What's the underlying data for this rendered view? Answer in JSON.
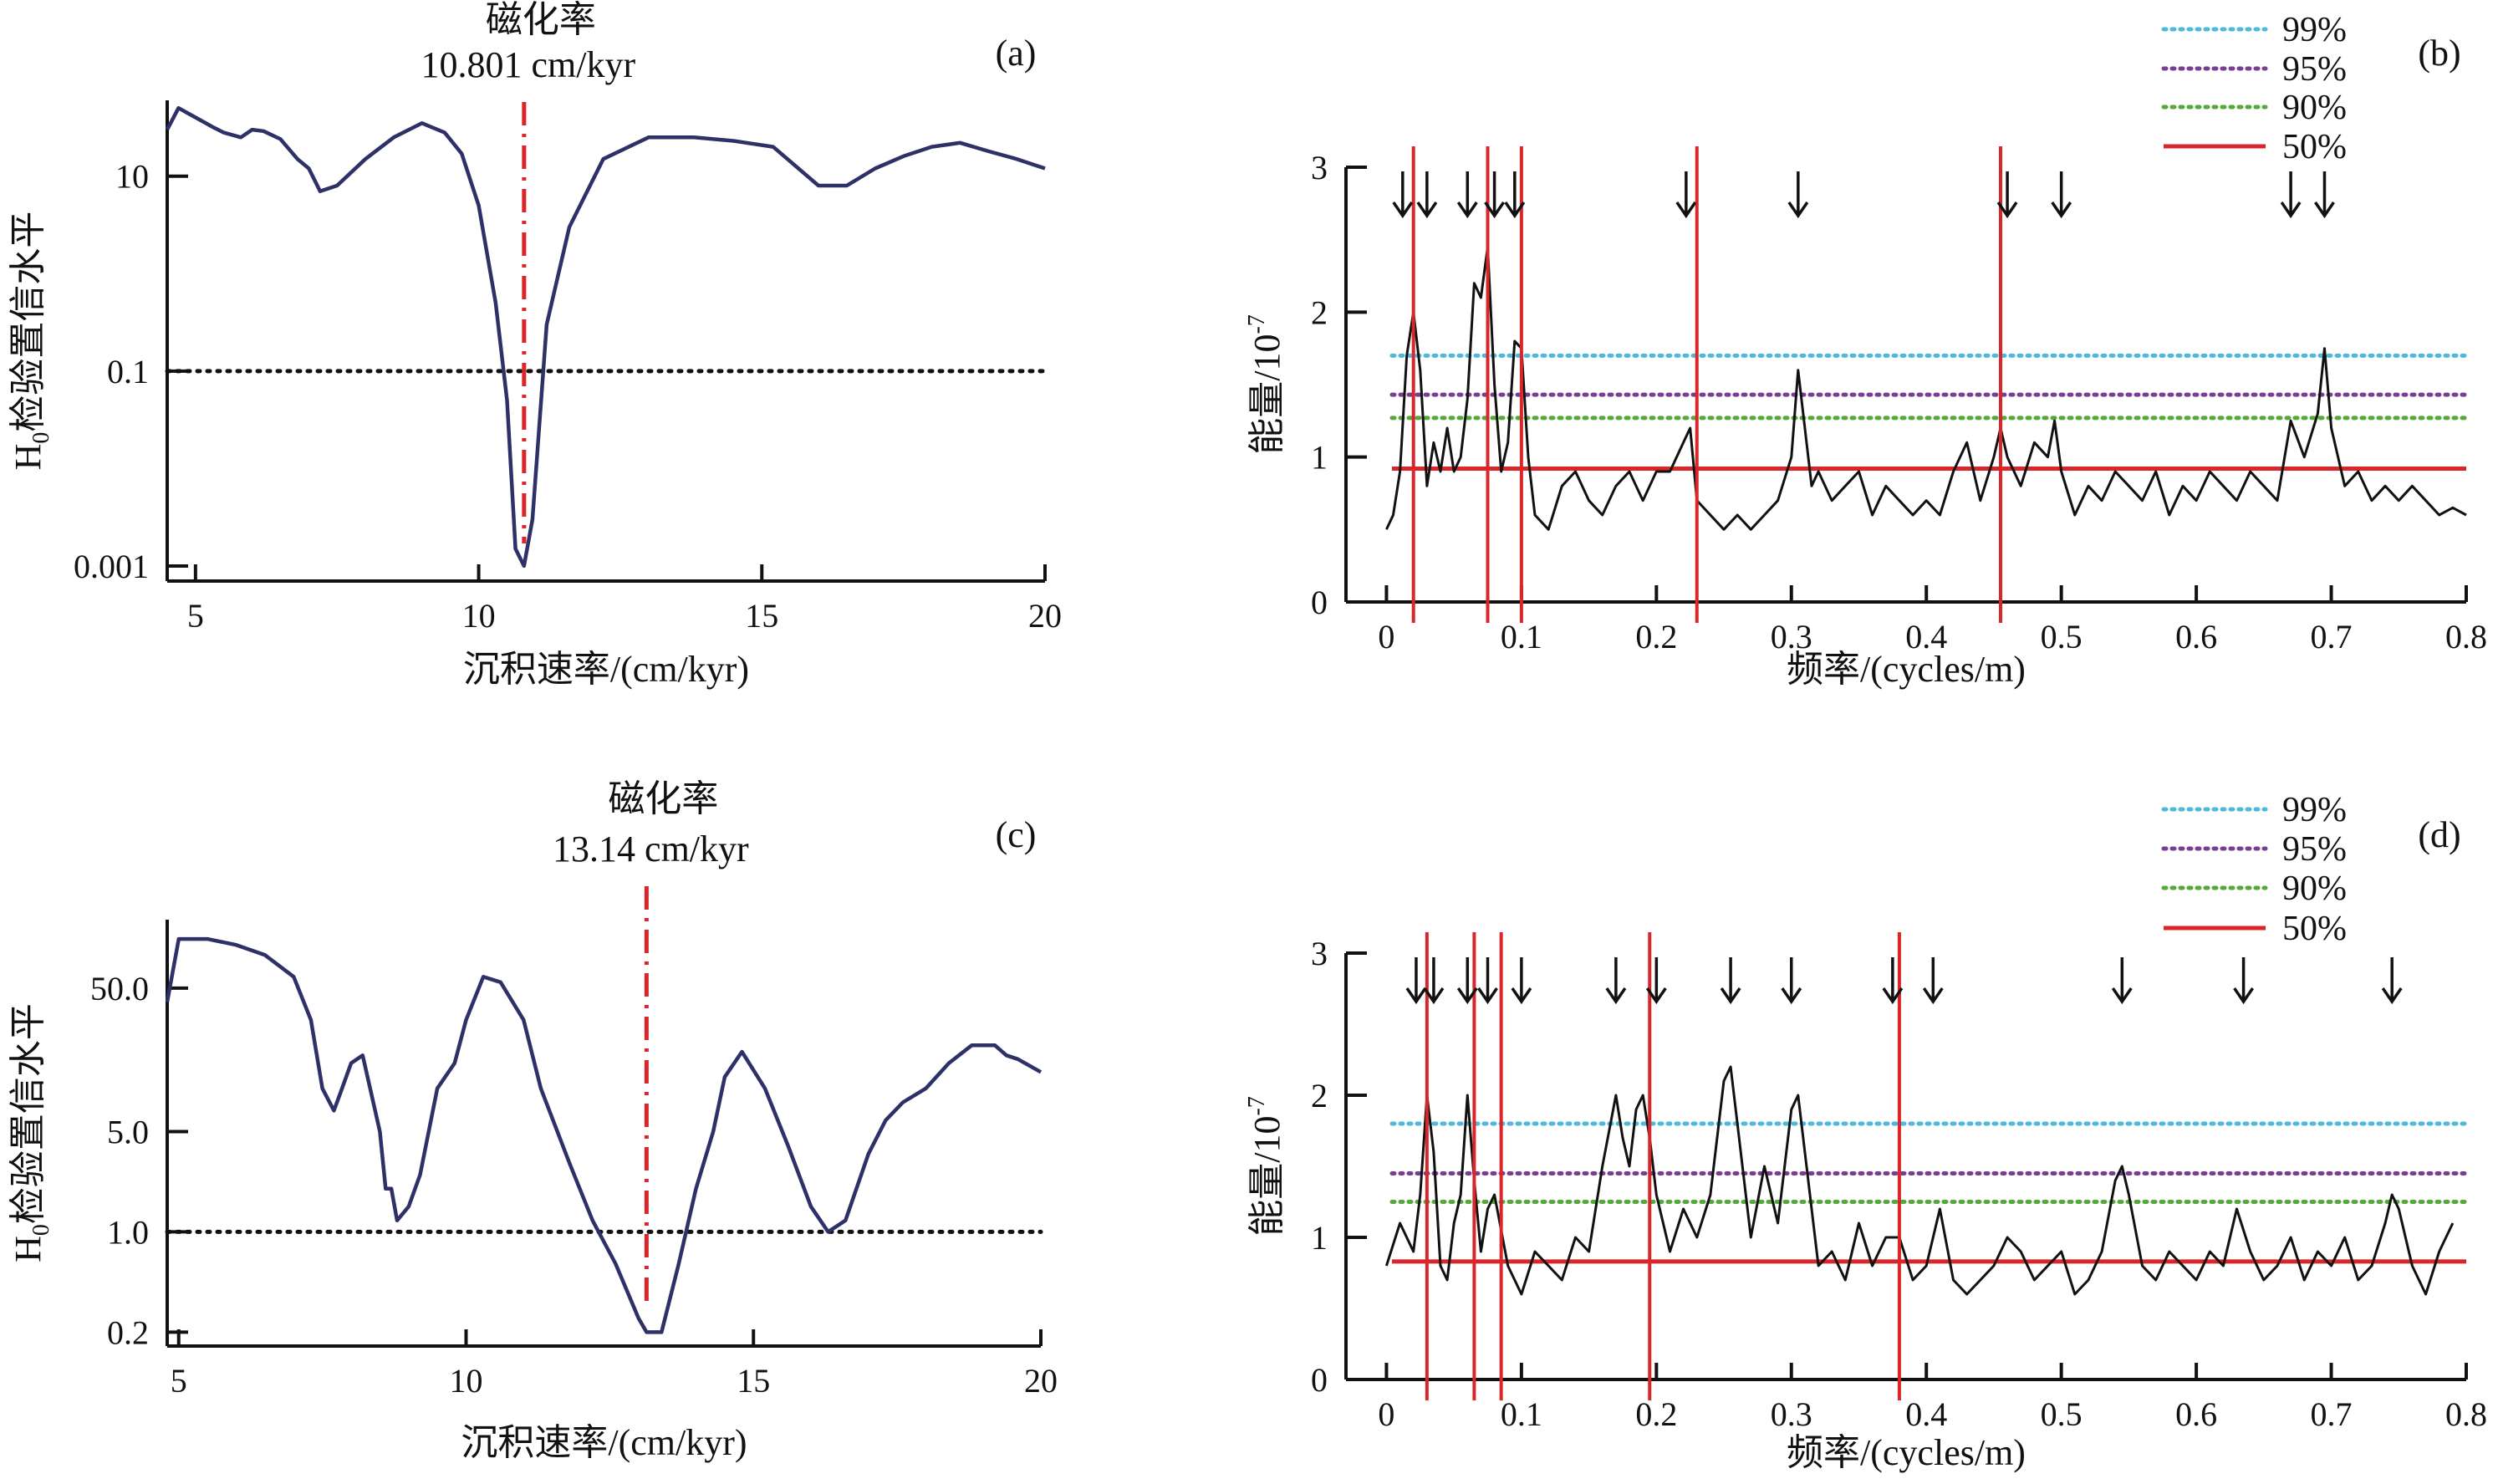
{
  "chart_data": [
    {
      "id": "a",
      "type": "line",
      "panel_label": "(a)",
      "title": "磁化率",
      "subtitle": "10.801 cm/kyr",
      "xlabel": "沉积速率/(cm/kyr)",
      "ylabel": "H0检验置信水平",
      "ylabel_main": "H",
      "ylabel_sub": "0",
      "ylabel_rest": "检验置信水平",
      "yscale": "log",
      "xlim": [
        4.5,
        20
      ],
      "ylim": [
        0.0007,
        60
      ],
      "xticks": [
        5,
        10,
        15,
        20
      ],
      "xtick_labels": [
        "5",
        "10",
        "15",
        "20"
      ],
      "yticks": [
        0.001,
        0.1,
        10
      ],
      "ytick_labels": [
        "0.001",
        "0.1",
        "10"
      ],
      "ref_line": 0.1,
      "marker_x": 10.801,
      "line_color": "#2e3168",
      "marker_color": "#d9262b",
      "series": [
        {
          "x": [
            4.5,
            4.7,
            5.0,
            5.3,
            5.5,
            5.8,
            6.0,
            6.2,
            6.5,
            6.8,
            7.0,
            7.2,
            7.5,
            8.0,
            8.5,
            9.0,
            9.4,
            9.7,
            10.0,
            10.3,
            10.5,
            10.65,
            10.8,
            10.95,
            11.2,
            11.6,
            12.2,
            13.0,
            13.8,
            14.5,
            15.2,
            16.0,
            16.5,
            17.0,
            17.5,
            18.0,
            18.5,
            19.0,
            19.5,
            20.0
          ],
          "y": [
            30,
            50,
            40,
            32,
            28,
            25,
            30,
            29,
            24,
            15,
            12,
            7,
            8,
            15,
            25,
            35,
            28,
            17,
            5,
            0.5,
            0.05,
            0.0015,
            0.001,
            0.003,
            0.3,
            3,
            15,
            25,
            25,
            23,
            20,
            8,
            8,
            12,
            16,
            20,
            22,
            18,
            15,
            12
          ]
        }
      ]
    },
    {
      "id": "b",
      "type": "line",
      "panel_label": "(b)",
      "xlabel": "频率/(cycles/m)",
      "ylabel": "能量/10-7",
      "ylabel_main": "能量/10",
      "ylabel_sup": "-7",
      "xlim": [
        -0.03,
        0.8
      ],
      "ylim": [
        0,
        3
      ],
      "xticks": [
        0,
        0.1,
        0.2,
        0.3,
        0.4,
        0.5,
        0.6,
        0.7,
        0.8
      ],
      "xtick_labels": [
        "0",
        "0.1",
        "0.2",
        "0.3",
        "0.4",
        "0.5",
        "0.6",
        "0.7",
        "0.8"
      ],
      "yticks": [
        0,
        1,
        2,
        3
      ],
      "ytick_labels": [
        "0",
        "1",
        "2",
        "3"
      ],
      "legend": [
        {
          "label": "99%",
          "color": "#4fb9da",
          "style": "dotted"
        },
        {
          "label": "95%",
          "color": "#7a3d94",
          "style": "dotted"
        },
        {
          "label": "90%",
          "color": "#55a83a",
          "style": "dotted"
        },
        {
          "label": "50%",
          "color": "#d9262b",
          "style": "solid"
        }
      ],
      "confidence_levels": [
        1.7,
        1.43,
        1.27,
        0.92
      ],
      "vertical_lines_x": [
        0.02,
        0.075,
        0.1,
        0.23,
        0.455
      ],
      "arrows_x": [
        0.012,
        0.03,
        0.06,
        0.08,
        0.095,
        0.222,
        0.305,
        0.46,
        0.5,
        0.67,
        0.695
      ],
      "series": [
        {
          "x": [
            0,
            0.005,
            0.01,
            0.015,
            0.02,
            0.025,
            0.03,
            0.035,
            0.04,
            0.045,
            0.05,
            0.055,
            0.06,
            0.065,
            0.07,
            0.075,
            0.08,
            0.085,
            0.09,
            0.095,
            0.1,
            0.105,
            0.11,
            0.12,
            0.13,
            0.14,
            0.15,
            0.16,
            0.17,
            0.18,
            0.19,
            0.2,
            0.21,
            0.22,
            0.225,
            0.23,
            0.24,
            0.25,
            0.26,
            0.27,
            0.28,
            0.29,
            0.3,
            0.305,
            0.31,
            0.315,
            0.32,
            0.33,
            0.34,
            0.35,
            0.36,
            0.37,
            0.38,
            0.39,
            0.4,
            0.41,
            0.42,
            0.43,
            0.44,
            0.45,
            0.455,
            0.46,
            0.47,
            0.48,
            0.49,
            0.495,
            0.5,
            0.51,
            0.52,
            0.53,
            0.54,
            0.55,
            0.56,
            0.57,
            0.58,
            0.59,
            0.6,
            0.61,
            0.62,
            0.63,
            0.64,
            0.65,
            0.66,
            0.67,
            0.68,
            0.69,
            0.695,
            0.7,
            0.71,
            0.72,
            0.73,
            0.74,
            0.75,
            0.76,
            0.77,
            0.78,
            0.79,
            0.8
          ],
          "y": [
            0.5,
            0.6,
            0.9,
            1.7,
            2.0,
            1.6,
            0.8,
            1.1,
            0.9,
            1.2,
            0.9,
            1.0,
            1.4,
            2.2,
            2.1,
            2.45,
            1.5,
            0.9,
            1.1,
            1.8,
            1.75,
            1.0,
            0.6,
            0.5,
            0.8,
            0.9,
            0.7,
            0.6,
            0.8,
            0.9,
            0.7,
            0.9,
            0.9,
            1.1,
            1.2,
            0.7,
            0.6,
            0.5,
            0.6,
            0.5,
            0.6,
            0.7,
            1.0,
            1.6,
            1.2,
            0.8,
            0.9,
            0.7,
            0.8,
            0.9,
            0.6,
            0.8,
            0.7,
            0.6,
            0.7,
            0.6,
            0.9,
            1.1,
            0.7,
            1.0,
            1.2,
            1.0,
            0.8,
            1.1,
            1.0,
            1.25,
            0.9,
            0.6,
            0.8,
            0.7,
            0.9,
            0.8,
            0.7,
            0.9,
            0.6,
            0.8,
            0.7,
            0.9,
            0.8,
            0.7,
            0.9,
            0.8,
            0.7,
            1.25,
            1.0,
            1.3,
            1.75,
            1.2,
            0.8,
            0.9,
            0.7,
            0.8,
            0.7,
            0.8,
            0.7,
            0.6,
            0.65,
            0.6
          ]
        }
      ]
    },
    {
      "id": "c",
      "type": "line",
      "panel_label": "(c)",
      "title": "磁化率",
      "subtitle": "13.14 cm/kyr",
      "xlabel": "沉积速率/(cm/kyr)",
      "ylabel": "H0检验置信水平",
      "ylabel_main": "H",
      "ylabel_sub": "0",
      "ylabel_rest": "检验置信水平",
      "yscale": "log",
      "xlim": [
        4.8,
        20
      ],
      "ylim": [
        0.16,
        150
      ],
      "xticks": [
        5,
        10,
        15,
        20
      ],
      "xtick_labels": [
        "5",
        "10",
        "15",
        "20"
      ],
      "yticks": [
        0.2,
        1.0,
        5.0,
        50.0
      ],
      "ytick_labels": [
        "0.2",
        "1.0",
        "5.0",
        "50.0"
      ],
      "ref_line": 1.0,
      "marker_x": 13.14,
      "line_color": "#2e3168",
      "marker_color": "#d9262b",
      "series": [
        {
          "x": [
            4.8,
            5.0,
            5.5,
            6.0,
            6.5,
            7.0,
            7.3,
            7.5,
            7.7,
            7.8,
            8.0,
            8.2,
            8.5,
            8.6,
            8.7,
            8.8,
            9.0,
            9.2,
            9.5,
            9.8,
            10.0,
            10.3,
            10.6,
            11.0,
            11.3,
            11.8,
            12.2,
            12.6,
            13.0,
            13.14,
            13.4,
            13.7,
            14.0,
            14.3,
            14.5,
            14.8,
            15.2,
            15.6,
            16.0,
            16.3,
            16.6,
            17.0,
            17.3,
            17.6,
            18.0,
            18.4,
            18.8,
            19.2,
            19.4,
            19.6,
            20.0
          ],
          "y": [
            40,
            110,
            110,
            100,
            85,
            60,
            30,
            10,
            7,
            9,
            15,
            17,
            5,
            2,
            2,
            1.2,
            1.5,
            2.5,
            10,
            15,
            30,
            60,
            55,
            30,
            10,
            3,
            1.2,
            0.6,
            0.25,
            0.2,
            0.2,
            0.6,
            2,
            5,
            12,
            18,
            10,
            4,
            1.5,
            1.0,
            1.2,
            3.5,
            6,
            8,
            10,
            15,
            20,
            20,
            17,
            16,
            13
          ]
        }
      ]
    },
    {
      "id": "d",
      "type": "line",
      "panel_label": "(d)",
      "xlabel": "频率/(cycles/m)",
      "ylabel": "能量/10-7",
      "ylabel_main": "能量/10",
      "ylabel_sup": "-7",
      "xlim": [
        -0.03,
        0.8
      ],
      "ylim": [
        0,
        3
      ],
      "xticks": [
        0,
        0.1,
        0.2,
        0.3,
        0.4,
        0.5,
        0.6,
        0.7,
        0.8
      ],
      "xtick_labels": [
        "0",
        "0.1",
        "0.2",
        "0.3",
        "0.4",
        "0.5",
        "0.6",
        "0.7",
        "0.8"
      ],
      "yticks": [
        0,
        1,
        2,
        3
      ],
      "ytick_labels": [
        "0",
        "1",
        "2",
        "3"
      ],
      "legend": [
        {
          "label": "99%",
          "color": "#4fb9da",
          "style": "dotted"
        },
        {
          "label": "95%",
          "color": "#7a3d94",
          "style": "dotted"
        },
        {
          "label": "90%",
          "color": "#55a83a",
          "style": "dotted"
        },
        {
          "label": "50%",
          "color": "#d9262b",
          "style": "solid"
        }
      ],
      "confidence_levels": [
        1.8,
        1.45,
        1.25,
        0.83
      ],
      "vertical_lines_x": [
        0.03,
        0.065,
        0.085,
        0.195,
        0.38
      ],
      "arrows_x": [
        0.022,
        0.035,
        0.06,
        0.075,
        0.1,
        0.17,
        0.2,
        0.255,
        0.3,
        0.375,
        0.405,
        0.545,
        0.635,
        0.745
      ],
      "series": [
        {
          "x": [
            0,
            0.01,
            0.02,
            0.025,
            0.03,
            0.035,
            0.04,
            0.045,
            0.05,
            0.055,
            0.06,
            0.065,
            0.07,
            0.075,
            0.08,
            0.09,
            0.1,
            0.11,
            0.12,
            0.13,
            0.14,
            0.15,
            0.16,
            0.17,
            0.175,
            0.18,
            0.185,
            0.19,
            0.195,
            0.2,
            0.21,
            0.22,
            0.23,
            0.24,
            0.25,
            0.255,
            0.26,
            0.27,
            0.28,
            0.29,
            0.3,
            0.305,
            0.31,
            0.32,
            0.33,
            0.34,
            0.35,
            0.36,
            0.37,
            0.38,
            0.39,
            0.4,
            0.41,
            0.42,
            0.43,
            0.44,
            0.45,
            0.46,
            0.47,
            0.48,
            0.49,
            0.5,
            0.51,
            0.52,
            0.53,
            0.54,
            0.545,
            0.55,
            0.56,
            0.57,
            0.58,
            0.59,
            0.6,
            0.61,
            0.62,
            0.63,
            0.64,
            0.65,
            0.66,
            0.67,
            0.68,
            0.69,
            0.7,
            0.71,
            0.72,
            0.73,
            0.74,
            0.745,
            0.75,
            0.76,
            0.77,
            0.78,
            0.79
          ],
          "y": [
            0.8,
            1.1,
            0.9,
            1.3,
            2.0,
            1.6,
            0.8,
            0.7,
            1.1,
            1.3,
            2.0,
            1.4,
            0.9,
            1.2,
            1.3,
            0.8,
            0.6,
            0.9,
            0.8,
            0.7,
            1.0,
            0.9,
            1.5,
            2.0,
            1.7,
            1.5,
            1.9,
            2.0,
            1.7,
            1.3,
            0.9,
            1.2,
            1.0,
            1.3,
            2.1,
            2.2,
            1.8,
            1.0,
            1.5,
            1.1,
            1.9,
            2.0,
            1.6,
            0.8,
            0.9,
            0.7,
            1.1,
            0.8,
            1.0,
            1.0,
            0.7,
            0.8,
            1.2,
            0.7,
            0.6,
            0.7,
            0.8,
            1.0,
            0.9,
            0.7,
            0.8,
            0.9,
            0.6,
            0.7,
            0.9,
            1.4,
            1.5,
            1.3,
            0.8,
            0.7,
            0.9,
            0.8,
            0.7,
            0.9,
            0.8,
            1.2,
            0.9,
            0.7,
            0.8,
            1.0,
            0.7,
            0.9,
            0.8,
            1.0,
            0.7,
            0.8,
            1.1,
            1.3,
            1.2,
            0.8,
            0.6,
            0.9,
            1.1
          ]
        }
      ]
    }
  ]
}
